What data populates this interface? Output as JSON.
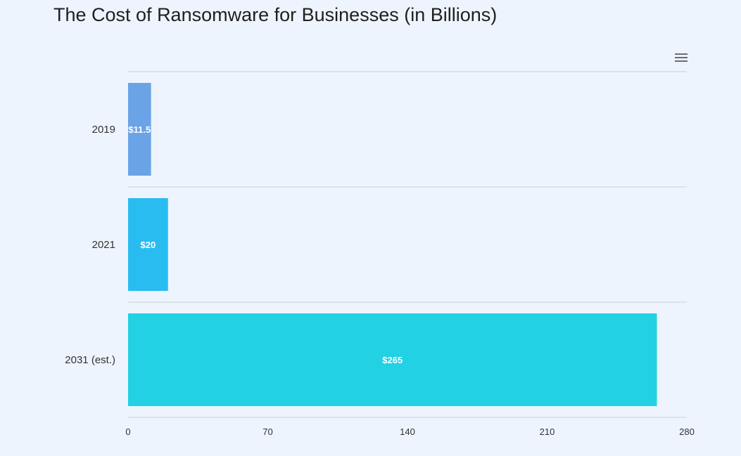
{
  "chart_data": {
    "type": "bar",
    "orientation": "horizontal",
    "title": "The Cost of Ransomware for Businesses (in Billions)",
    "categories": [
      "2019",
      "2021",
      "2031 (est.)"
    ],
    "values": [
      11.5,
      20,
      265
    ],
    "data_labels": [
      "$11.5",
      "$20",
      "$265"
    ],
    "colors": [
      "#6aa3e6",
      "#29bcf1",
      "#22d1e3"
    ],
    "xlim": [
      0,
      280
    ],
    "xticks": [
      "0",
      "70",
      "140",
      "210",
      "280"
    ],
    "xlabel": "",
    "ylabel": "",
    "grid": true,
    "legend": "none"
  },
  "toolbar": {
    "menu_icon": "hamburger-menu-icon"
  }
}
